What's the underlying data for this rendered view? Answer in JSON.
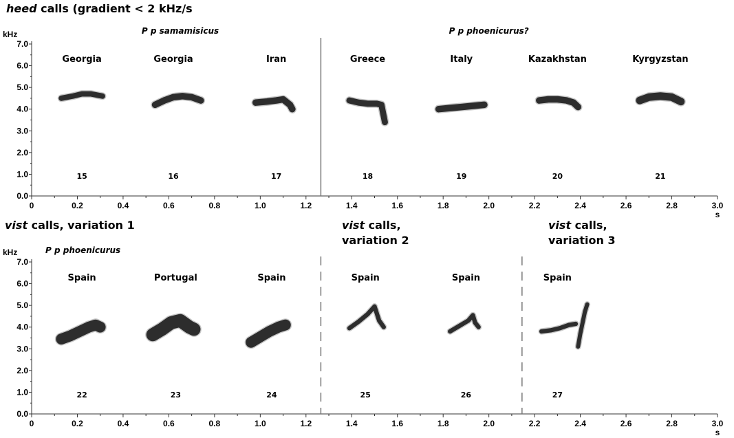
{
  "chart_data": [
    {
      "type": "spectrogram",
      "title": "heed calls (gradient < 2 kHz/s",
      "title_italic_part": "heed",
      "title_rest": " calls (gradient < 2 kHz/s",
      "ylabel": "kHz",
      "xlabel": "s",
      "xlim": [
        0,
        3.0
      ],
      "ylim": [
        0,
        7.0
      ],
      "xticks": [
        "0",
        "0.2",
        "0.4",
        "0.6",
        "0.8",
        "1.0",
        "1.2",
        "1.4",
        "1.6",
        "1.8",
        "2.0",
        "2.2",
        "2.4",
        "2.6",
        "2.8",
        "3.0"
      ],
      "yticks": [
        "0.0",
        "1.0",
        "2.0",
        "3.0",
        "4.0",
        "5.0",
        "6.0",
        "7.0"
      ],
      "dividers": [
        {
          "x": 1.265,
          "style": "solid"
        }
      ],
      "groups": [
        {
          "label": "P p samamisicus",
          "x": 0.65
        },
        {
          "label": "P p phoenicurus?",
          "x": 2.0
        }
      ],
      "calls": [
        {
          "id": "15",
          "location": "Georgia",
          "x_center": 0.22,
          "points": [
            [
              0.13,
              4.5
            ],
            [
              0.18,
              4.6
            ],
            [
              0.22,
              4.7
            ],
            [
              0.26,
              4.7
            ],
            [
              0.31,
              4.6
            ]
          ],
          "band": 0.25
        },
        {
          "id": "16",
          "location": "Georgia",
          "x_center": 0.62,
          "points": [
            [
              0.54,
              4.2
            ],
            [
              0.58,
              4.4
            ],
            [
              0.62,
              4.55
            ],
            [
              0.66,
              4.6
            ],
            [
              0.7,
              4.55
            ],
            [
              0.74,
              4.4
            ]
          ],
          "band": 0.3
        },
        {
          "id": "17",
          "location": "Iran",
          "x_center": 1.07,
          "points": [
            [
              0.98,
              4.3
            ],
            [
              1.03,
              4.35
            ],
            [
              1.07,
              4.4
            ],
            [
              1.1,
              4.45
            ],
            [
              1.13,
              4.2
            ],
            [
              1.14,
              4.0
            ]
          ],
          "band": 0.3
        },
        {
          "id": "18",
          "location": "Greece",
          "x_center": 1.47,
          "points": [
            [
              1.39,
              4.4
            ],
            [
              1.43,
              4.3
            ],
            [
              1.47,
              4.25
            ],
            [
              1.51,
              4.25
            ],
            [
              1.53,
              4.2
            ],
            [
              1.545,
              3.4
            ]
          ],
          "band": 0.28
        },
        {
          "id": "19",
          "location": "Italy",
          "x_center": 1.88,
          "points": [
            [
              1.78,
              4.0
            ],
            [
              1.83,
              4.05
            ],
            [
              1.88,
              4.1
            ],
            [
              1.93,
              4.15
            ],
            [
              1.98,
              4.2
            ]
          ],
          "band": 0.3
        },
        {
          "id": "20",
          "location": "Kazakhstan",
          "x_center": 2.3,
          "points": [
            [
              2.22,
              4.4
            ],
            [
              2.26,
              4.45
            ],
            [
              2.3,
              4.45
            ],
            [
              2.34,
              4.4
            ],
            [
              2.37,
              4.3
            ],
            [
              2.39,
              4.1
            ]
          ],
          "band": 0.3
        },
        {
          "id": "21",
          "location": "Kyrgyzstan",
          "x_center": 2.75,
          "points": [
            [
              2.66,
              4.4
            ],
            [
              2.7,
              4.55
            ],
            [
              2.75,
              4.6
            ],
            [
              2.8,
              4.55
            ],
            [
              2.84,
              4.35
            ]
          ],
          "band": 0.35
        }
      ]
    },
    {
      "type": "spectrogram",
      "sections": [
        {
          "title_italic": "vist",
          "title_lines": [
            " calls, variation 1"
          ]
        },
        {
          "title_italic": "vist",
          "title_lines": [
            " calls,",
            "variation 2"
          ]
        },
        {
          "title_italic": "vist",
          "title_lines": [
            " calls,",
            "variation 3"
          ]
        }
      ],
      "ylabel": "kHz",
      "xlabel": "s",
      "xlim": [
        0,
        3.0
      ],
      "ylim": [
        0,
        7.0
      ],
      "xticks": [
        "0",
        "0.2",
        "0.4",
        "0.6",
        "0.8",
        "1.0",
        "1.2",
        "1.4",
        "1.6",
        "1.8",
        "2.0",
        "2.2",
        "2.4",
        "2.6",
        "2.8",
        "3.0"
      ],
      "yticks": [
        "0.0",
        "1.0",
        "2.0",
        "3.0",
        "4.0",
        "5.0",
        "6.0",
        "7.0"
      ],
      "dividers": [
        {
          "x": 1.265,
          "style": "dashed"
        },
        {
          "x": 2.145,
          "style": "dashed"
        }
      ],
      "groups": [
        {
          "label": "P p phoenicurus",
          "x": 0.18
        }
      ],
      "calls": [
        {
          "id": "22",
          "location": "Spain",
          "x_center": 0.22,
          "points": [
            [
              0.13,
              3.45
            ],
            [
              0.17,
              3.6
            ],
            [
              0.21,
              3.8
            ],
            [
              0.25,
              4.0
            ],
            [
              0.28,
              4.1
            ],
            [
              0.3,
              4.0
            ]
          ],
          "band": 0.5
        },
        {
          "id": "23",
          "location": "Portugal",
          "x_center": 0.63,
          "points": [
            [
              0.53,
              3.65
            ],
            [
              0.57,
              3.9
            ],
            [
              0.61,
              4.2
            ],
            [
              0.65,
              4.3
            ],
            [
              0.69,
              4.0
            ],
            [
              0.71,
              3.9
            ]
          ],
          "band": 0.6
        },
        {
          "id": "24",
          "location": "Spain",
          "x_center": 1.05,
          "points": [
            [
              0.96,
              3.3
            ],
            [
              1.0,
              3.55
            ],
            [
              1.04,
              3.8
            ],
            [
              1.08,
              4.0
            ],
            [
              1.11,
              4.1
            ]
          ],
          "band": 0.5
        },
        {
          "id": "25",
          "location": "Spain",
          "x_center": 1.46,
          "points": [
            [
              1.39,
              3.95
            ],
            [
              1.43,
              4.25
            ],
            [
              1.47,
              4.6
            ],
            [
              1.5,
              4.95
            ],
            [
              1.52,
              4.3
            ],
            [
              1.54,
              4.0
            ]
          ],
          "band": 0.2
        },
        {
          "id": "26",
          "location": "Spain",
          "x_center": 1.9,
          "points": [
            [
              1.83,
              3.8
            ],
            [
              1.87,
              4.05
            ],
            [
              1.91,
              4.3
            ],
            [
              1.93,
              4.55
            ],
            [
              1.94,
              4.2
            ],
            [
              1.955,
              4.0
            ]
          ],
          "band": 0.2
        },
        {
          "id": "27",
          "location": "Spain",
          "x_center": 2.3,
          "points": [
            [
              2.23,
              3.8
            ],
            [
              2.27,
              3.85
            ],
            [
              2.31,
              3.95
            ],
            [
              2.35,
              4.1
            ],
            [
              2.38,
              4.15
            ]
          ],
          "band": 0.2
        },
        {
          "id": "27b",
          "location": "",
          "x_center": 2.41,
          "points": [
            [
              2.39,
              3.1
            ],
            [
              2.4,
              3.7
            ],
            [
              2.41,
              4.2
            ],
            [
              2.42,
              4.7
            ],
            [
              2.43,
              5.05
            ]
          ],
          "band": 0.15
        }
      ]
    }
  ]
}
